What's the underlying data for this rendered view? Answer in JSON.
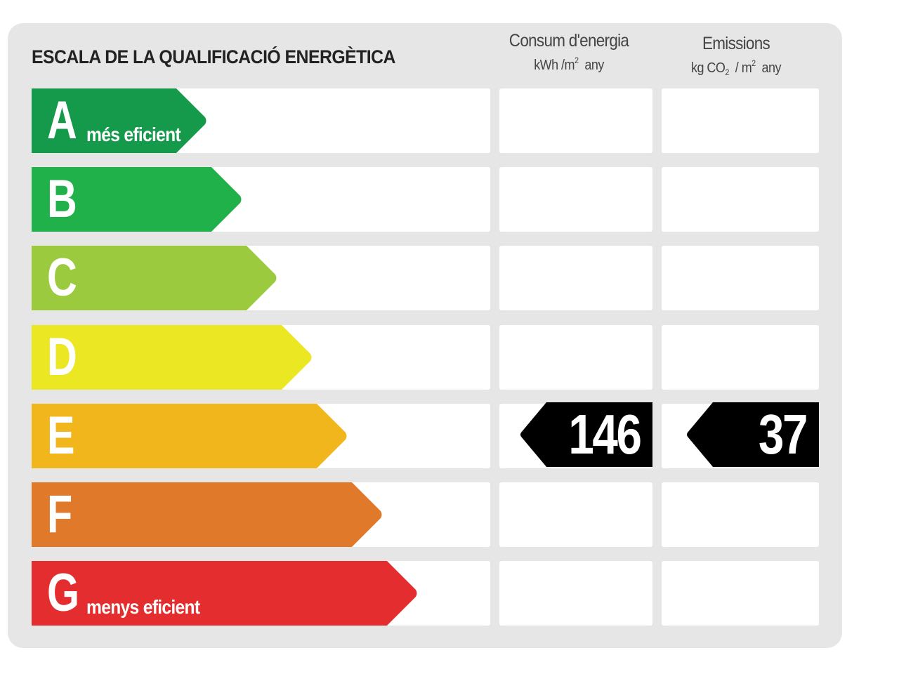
{
  "title": "ESCALA DE LA QUALIFICACIÓ ENERGÈTICA",
  "columns": {
    "energy": {
      "label": "Consum d'energia",
      "unit_prefix": "kWh /m",
      "unit_sup": "2",
      "unit_suffix": "any"
    },
    "emissions": {
      "label": "Emissions",
      "unit_prefix": "kg CO",
      "unit_sub": "2",
      "unit_mid": " / m",
      "unit_sup": "2",
      "unit_suffix": "any"
    }
  },
  "ratings": [
    {
      "letter": "A",
      "sublabel": "més eficient",
      "color": "#15994b"
    },
    {
      "letter": "B",
      "sublabel": "",
      "color": "#20b14a"
    },
    {
      "letter": "C",
      "sublabel": "",
      "color": "#9bca3e"
    },
    {
      "letter": "D",
      "sublabel": "",
      "color": "#ebe823"
    },
    {
      "letter": "E",
      "sublabel": "",
      "color": "#f0b61b"
    },
    {
      "letter": "F",
      "sublabel": "",
      "color": "#e07a2a"
    },
    {
      "letter": "G",
      "sublabel": "menys eficient",
      "color": "#e42d2e"
    }
  ],
  "result": {
    "rating": "E",
    "energy_value": "146",
    "emissions_value": "37",
    "marker_color": "#000000"
  }
}
